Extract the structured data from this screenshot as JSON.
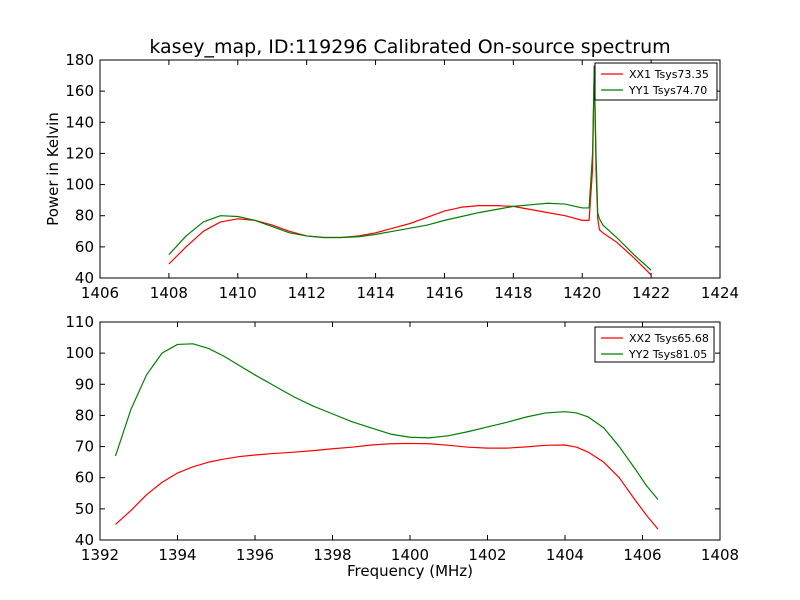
{
  "title": "kasey_map, ID:119296 Calibrated On-source spectrum",
  "colors": {
    "xx": "#ff0000",
    "yy": "#008000"
  },
  "chart_data": [
    {
      "type": "line",
      "xlabel": "",
      "ylabel": "Power in Kelvin",
      "xlim": [
        1406,
        1424
      ],
      "ylim": [
        40,
        180
      ],
      "xticks": [
        1406,
        1408,
        1410,
        1412,
        1414,
        1416,
        1418,
        1420,
        1422,
        1424
      ],
      "yticks": [
        40,
        60,
        80,
        100,
        120,
        140,
        160,
        180
      ],
      "grid": false,
      "legend_position": "top-right",
      "series": [
        {
          "name": "XX1 Tsys73.35",
          "color": "#ff0000",
          "x": [
            1408.0,
            1408.5,
            1409.0,
            1409.5,
            1410.0,
            1410.5,
            1411.0,
            1411.5,
            1412.0,
            1412.5,
            1413.0,
            1413.5,
            1414.0,
            1414.5,
            1415.0,
            1415.5,
            1416.0,
            1416.5,
            1417.0,
            1417.5,
            1418.0,
            1418.5,
            1419.0,
            1419.5,
            1420.0,
            1420.2,
            1420.3,
            1420.35,
            1420.4,
            1420.45,
            1420.5,
            1420.6,
            1421.0,
            1421.5,
            1422.0
          ],
          "y": [
            49,
            60,
            70,
            76,
            78,
            77,
            74,
            70,
            67,
            66,
            66,
            67,
            69,
            72,
            75,
            79,
            83,
            85.5,
            86.5,
            86.5,
            86,
            84,
            82,
            80,
            77,
            77,
            110,
            176,
            110,
            78,
            71,
            69,
            63,
            53,
            42
          ]
        },
        {
          "name": "YY1 Tsys74.70",
          "color": "#008000",
          "x": [
            1408.0,
            1408.5,
            1409.0,
            1409.5,
            1410.0,
            1410.5,
            1411.0,
            1411.5,
            1412.0,
            1412.5,
            1413.0,
            1413.5,
            1414.0,
            1414.5,
            1415.0,
            1415.5,
            1416.0,
            1416.5,
            1417.0,
            1417.5,
            1418.0,
            1418.5,
            1419.0,
            1419.5,
            1420.0,
            1420.2,
            1420.3,
            1420.35,
            1420.4,
            1420.45,
            1420.5,
            1420.6,
            1421.0,
            1421.5,
            1422.0
          ],
          "y": [
            55,
            67,
            76,
            80,
            79.5,
            77,
            73,
            69,
            67,
            66,
            66,
            66.5,
            68,
            70,
            72,
            74,
            77,
            79.5,
            82,
            84,
            86,
            87,
            88,
            87.5,
            85,
            85,
            120,
            176,
            120,
            82,
            78,
            74,
            66,
            55,
            45
          ]
        }
      ]
    },
    {
      "type": "line",
      "xlabel": "Frequency (MHz)",
      "ylabel": "",
      "xlim": [
        1392,
        1408
      ],
      "ylim": [
        40,
        110
      ],
      "xticks": [
        1392,
        1394,
        1396,
        1398,
        1400,
        1402,
        1404,
        1406,
        1408
      ],
      "yticks": [
        40,
        50,
        60,
        70,
        80,
        90,
        100,
        110
      ],
      "grid": false,
      "legend_position": "top-right",
      "series": [
        {
          "name": "XX2 Tsys65.68",
          "color": "#ff0000",
          "x": [
            1392.4,
            1392.8,
            1393.2,
            1393.6,
            1394.0,
            1394.4,
            1394.8,
            1395.2,
            1395.6,
            1396.0,
            1396.5,
            1397.0,
            1397.5,
            1398.0,
            1398.5,
            1399.0,
            1399.5,
            1400.0,
            1400.5,
            1401.0,
            1401.5,
            1402.0,
            1402.5,
            1403.0,
            1403.5,
            1404.0,
            1404.3,
            1404.6,
            1405.0,
            1405.4,
            1405.8,
            1406.1,
            1406.4
          ],
          "y": [
            45,
            49.5,
            54.5,
            58.5,
            61.5,
            63.5,
            65,
            66,
            66.8,
            67.3,
            67.8,
            68.2,
            68.7,
            69.3,
            69.8,
            70.5,
            70.9,
            71,
            70.9,
            70.4,
            69.8,
            69.5,
            69.5,
            69.9,
            70.4,
            70.5,
            69.8,
            68.2,
            65,
            60,
            53,
            48,
            43.5
          ]
        },
        {
          "name": "YY2 Tsys81.05",
          "color": "#008000",
          "x": [
            1392.4,
            1392.8,
            1393.2,
            1393.6,
            1394.0,
            1394.4,
            1394.8,
            1395.2,
            1395.6,
            1396.0,
            1396.5,
            1397.0,
            1397.5,
            1398.0,
            1398.5,
            1399.0,
            1399.5,
            1400.0,
            1400.5,
            1401.0,
            1401.5,
            1402.0,
            1402.5,
            1403.0,
            1403.5,
            1404.0,
            1404.3,
            1404.6,
            1405.0,
            1405.4,
            1405.8,
            1406.1,
            1406.4
          ],
          "y": [
            67,
            82,
            93,
            100,
            102.8,
            103,
            101.5,
            99,
            96,
            93,
            89.5,
            86,
            83,
            80.5,
            78,
            76,
            74,
            73,
            72.8,
            73.5,
            74.8,
            76.3,
            77.8,
            79.5,
            80.8,
            81.2,
            80.8,
            79.5,
            76,
            70,
            63,
            57.5,
            53
          ]
        }
      ]
    }
  ]
}
